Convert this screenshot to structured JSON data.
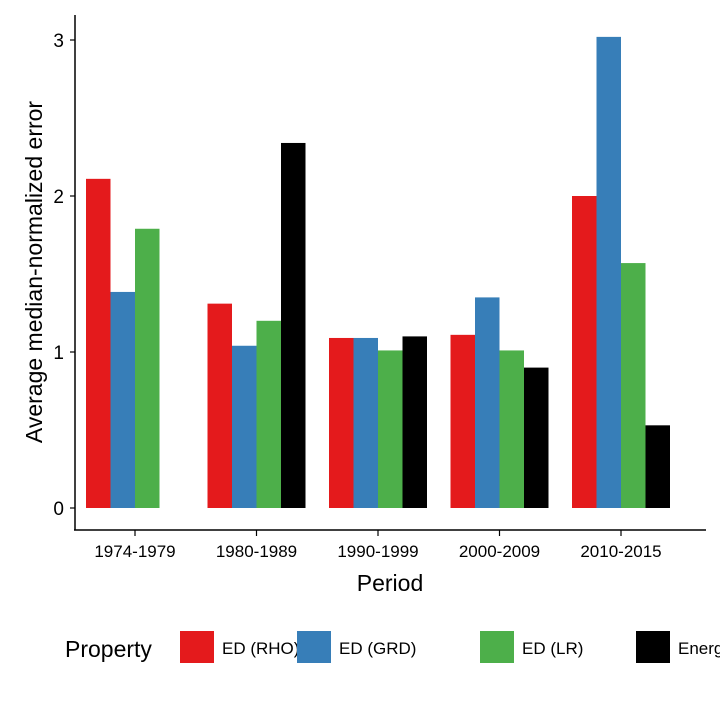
{
  "chart_data": {
    "type": "bar",
    "title": "",
    "xlabel": "Period",
    "ylabel": "Average median-normalized error",
    "ylim": [
      -0.15,
      3.2
    ],
    "yticks": [
      0,
      1,
      2,
      3
    ],
    "grid": false,
    "legend_position": "bottom",
    "legend_title": "Property",
    "categories": [
      "1974-1979",
      "1980-1989",
      "1990-1999",
      "2000-2009",
      "2010-2015"
    ],
    "series": [
      {
        "name": "ED (RHO)",
        "color": "#E41A1C",
        "values": [
          2.11,
          1.31,
          1.09,
          1.11,
          2.0
        ]
      },
      {
        "name": "ED (GRD)",
        "color": "#377EB8",
        "values": [
          1.385,
          1.04,
          1.09,
          1.35,
          3.02
        ]
      },
      {
        "name": "ED (LR)",
        "color": "#4DAF4A",
        "values": [
          1.79,
          1.2,
          1.01,
          1.01,
          1.57
        ]
      },
      {
        "name": "Energy",
        "color": "#000000",
        "values": [
          null,
          2.34,
          1.1,
          0.9,
          0.53
        ]
      }
    ]
  }
}
